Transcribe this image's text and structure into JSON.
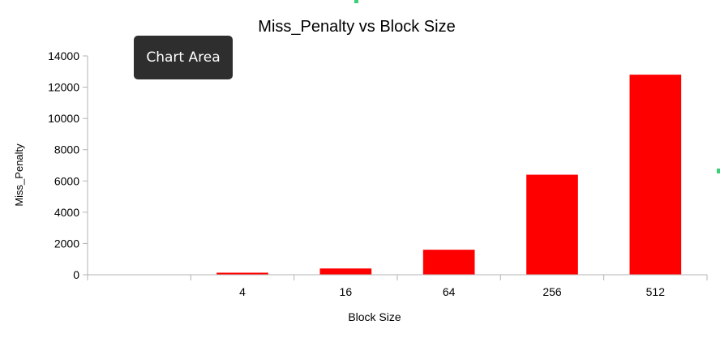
{
  "tooltip": {
    "text": "Chart Area"
  },
  "chart_data": {
    "type": "bar",
    "title": "Miss_Penalty vs Block Size",
    "xlabel": "Block Size",
    "ylabel": "Miss_Penalty",
    "categories": [
      "",
      "4",
      "16",
      "64",
      "256",
      "512"
    ],
    "values": [
      0,
      130,
      400,
      1600,
      6400,
      12800
    ],
    "ylim": [
      0,
      14000
    ],
    "yticks": [
      0,
      2000,
      4000,
      6000,
      8000,
      10000,
      12000,
      14000
    ],
    "grid": false,
    "legend": "none",
    "bar_color": "#ff0000"
  }
}
